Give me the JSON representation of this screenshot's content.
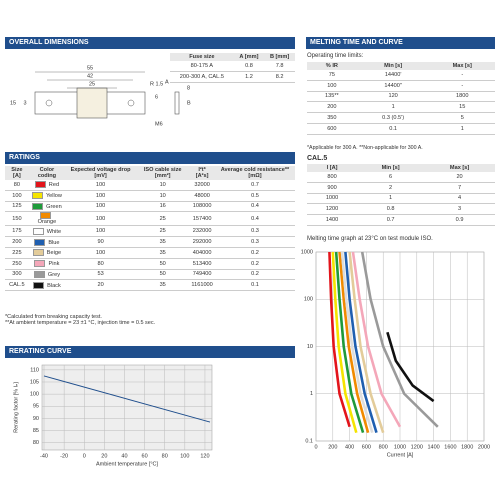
{
  "overall_dimensions": {
    "title": "OVERALL DIMENSIONS",
    "drawing_labels": [
      "55",
      "42",
      "25",
      "R 1.5",
      "6",
      "15",
      "3",
      "M6",
      "A",
      "B",
      "8"
    ],
    "table": {
      "header": [
        "Fuse size",
        "A [mm]",
        "B [mm]"
      ],
      "rows": [
        [
          "80-175 A",
          "0.8",
          "7.8"
        ],
        [
          "200-300 A, CAL.5",
          "1.2",
          "8.2"
        ]
      ]
    }
  },
  "ratings": {
    "title": "RATINGS",
    "header": [
      "Size [A]",
      "Color coding",
      "Expected voltage drop [mV]",
      "ISO cable size [mm²]",
      "I²t* [A²s]",
      "Average cold resistance** [mΩ]"
    ],
    "swatches": [
      "#e3141b",
      "#f5e400",
      "#1f9a3a",
      "#f18a00",
      "#ffffff",
      "#1f5fb0",
      "#e3cc9a",
      "#f4a7b9",
      "#9a9a9a",
      "#111111"
    ],
    "rows": [
      [
        "80",
        "Red",
        "100",
        "10",
        "32000",
        "0.7"
      ],
      [
        "100",
        "Yellow",
        "100",
        "10",
        "48000",
        "0.5"
      ],
      [
        "125",
        "Green",
        "100",
        "16",
        "108000",
        "0.4"
      ],
      [
        "150",
        "Orange",
        "100",
        "25",
        "157400",
        "0.4"
      ],
      [
        "175",
        "White",
        "100",
        "25",
        "232000",
        "0.3"
      ],
      [
        "200",
        "Blue",
        "90",
        "35",
        "292000",
        "0.3"
      ],
      [
        "225",
        "Beige",
        "100",
        "35",
        "404000",
        "0.2"
      ],
      [
        "250",
        "Pink",
        "80",
        "50",
        "513400",
        "0.2"
      ],
      [
        "300",
        "Grey",
        "53",
        "50",
        "749400",
        "0.2"
      ],
      [
        "CAL.5",
        "Black",
        "20",
        "35",
        "1161000",
        "0.1"
      ]
    ],
    "notes": [
      "*Calculated from breaking capacity test.",
      "**At ambient temperature = 23 ±1 °C, injection time = 0.5 sec."
    ]
  },
  "rerating": {
    "title": "RERATING CURVE",
    "chart_data": {
      "type": "line",
      "x_label": "Ambient temperature [°C]",
      "y_label": "Rerating factor [% Iₙ]",
      "x": [
        -40,
        125
      ],
      "values": [
        107.5,
        88.5
      ],
      "color": "#1f4e8c",
      "xlim": [
        -42,
        127
      ],
      "ylim": [
        77,
        112
      ],
      "xticks": [
        -40,
        -20,
        0,
        20,
        40,
        60,
        80,
        100,
        120
      ],
      "yticks": [
        80,
        85,
        90,
        95,
        100,
        105,
        110
      ],
      "grid": true
    }
  },
  "melting": {
    "title": "MELTING TIME AND CURVE",
    "intro": "Operating time limits:",
    "table": {
      "header": [
        "% IR",
        "Min [s]",
        "Max [s]"
      ],
      "rows": [
        [
          "75",
          "14400'",
          "-"
        ],
        [
          "100",
          "14400\"",
          "-"
        ],
        [
          "135**",
          "120",
          "1800"
        ],
        [
          "200",
          "1",
          "15"
        ],
        [
          "350",
          "0.3 (0.5')",
          "5"
        ],
        [
          "600",
          "0.1",
          "1"
        ]
      ]
    },
    "note": "*Applicable for 300 A.   **Non-applicable for 300 A.",
    "cal_title": "CAL.5",
    "cal_table": {
      "header": [
        "I [A]",
        "Min [s]",
        "Max [s]"
      ],
      "rows": [
        [
          "800",
          "6",
          "20"
        ],
        [
          "900",
          "2",
          "7"
        ],
        [
          "1000",
          "1",
          "4"
        ],
        [
          "1200",
          "0.8",
          "3"
        ],
        [
          "1400",
          "0.7",
          "0.9"
        ]
      ]
    },
    "graph_caption": "Melting time graph at 23°C on test module ISO.",
    "chart_data": {
      "type": "line",
      "x_label": "Current [A]",
      "y_label": "Time [s]",
      "log_y": true,
      "grid": true,
      "xlim": [
        0,
        2000
      ],
      "ylim": [
        0.1,
        1000
      ],
      "xticks": [
        0,
        200,
        400,
        600,
        800,
        1000,
        1200,
        1400,
        1600,
        1800,
        2000
      ],
      "yticks": [
        0.1,
        1,
        10,
        100,
        1000
      ],
      "series": [
        {
          "color": "#e3141b",
          "x": [
            160,
            180,
            210,
            280,
            400
          ],
          "values": [
            1000,
            100,
            10,
            1,
            0.2
          ]
        },
        {
          "color": "#f5e400",
          "x": [
            200,
            230,
            270,
            350,
            480
          ],
          "values": [
            1000,
            100,
            10,
            1,
            0.15
          ]
        },
        {
          "color": "#1f9a3a",
          "x": [
            240,
            280,
            330,
            420,
            560
          ],
          "values": [
            1000,
            100,
            10,
            1,
            0.15
          ]
        },
        {
          "color": "#f18a00",
          "x": [
            280,
            330,
            390,
            490,
            620
          ],
          "values": [
            1000,
            100,
            10,
            1,
            0.15
          ]
        },
        {
          "color": "#dddddd",
          "x": [
            310,
            360,
            430,
            530,
            670
          ],
          "values": [
            1000,
            100,
            10,
            1,
            0.15
          ]
        },
        {
          "color": "#1f5fb0",
          "x": [
            350,
            400,
            470,
            580,
            720
          ],
          "values": [
            1000,
            100,
            10,
            1,
            0.15
          ]
        },
        {
          "color": "#e3cc9a",
          "x": [
            400,
            460,
            530,
            650,
            800
          ],
          "values": [
            1000,
            100,
            10,
            1,
            0.15
          ]
        },
        {
          "color": "#f4a7b9",
          "x": [
            440,
            520,
            620,
            780,
            1000
          ],
          "values": [
            1000,
            100,
            10,
            1,
            0.2
          ]
        },
        {
          "color": "#9a9a9a",
          "x": [
            550,
            650,
            800,
            1050,
            1450
          ],
          "values": [
            1000,
            100,
            10,
            1,
            0.2
          ]
        },
        {
          "color": "#111111",
          "x": [
            850,
            950,
            1150,
            1400
          ],
          "values": [
            20,
            5,
            1.5,
            0.7
          ]
        }
      ]
    }
  }
}
